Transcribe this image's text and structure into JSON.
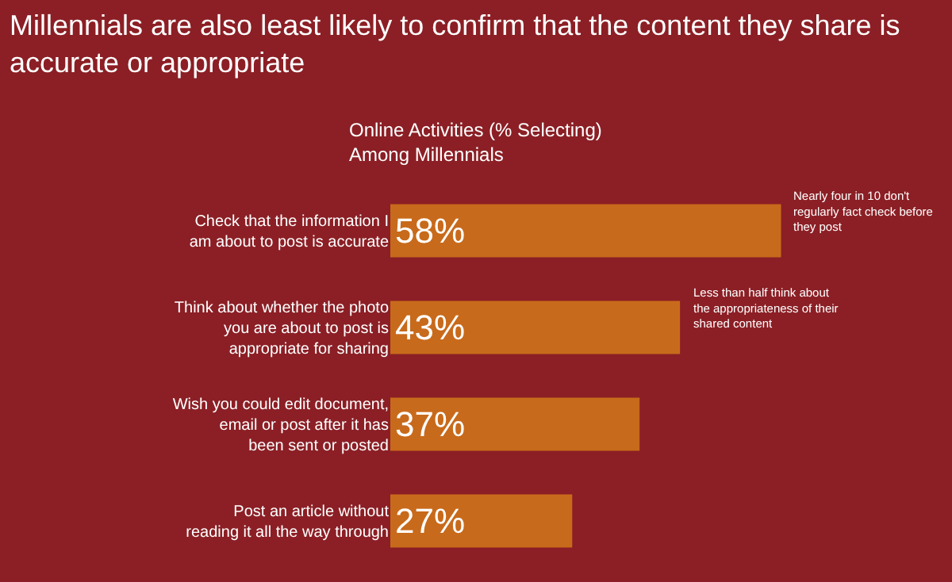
{
  "chart_data": {
    "type": "bar",
    "orientation": "horizontal",
    "title": "Millennials are also least likely to confirm that the content they share is accurate or appropriate",
    "subtitle": "Online Activities (% Selecting) Among Millennials",
    "categories": [
      "Check that the information I am about to post is accurate",
      "Think about whether the photo you are about to post is appropriate for sharing",
      "Wish you could edit document, email or post after it has been sent or posted",
      "Post an article without reading it all the way through"
    ],
    "values": [
      58,
      43,
      37,
      27
    ],
    "color": "#c86a1b",
    "value_labels": [
      "58%",
      "43%",
      "37%",
      "27%"
    ],
    "annotations": [
      "Nearly four in 10 don't regularly fact check before they post",
      "Less than half think about the appropriateness of their shared content"
    ]
  }
}
